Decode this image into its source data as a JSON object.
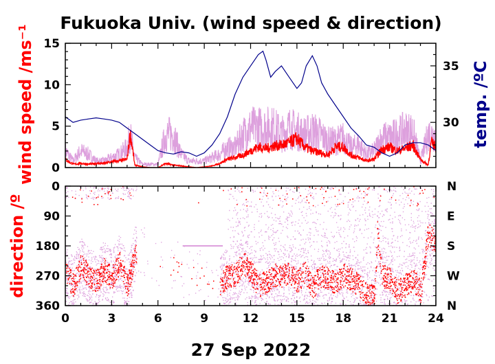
{
  "chart_data": [
    {
      "type": "line",
      "title": "Fukuoka Univ. (wind speed & direction)",
      "ylabel": "wind speed /ms⁻¹",
      "y2label": "temp. /ºC",
      "ylim": [
        0,
        15
      ],
      "y2lim": [
        26,
        37
      ],
      "xlim": [
        0,
        24
      ],
      "yticks": [
        "0",
        "5",
        "10",
        "15"
      ],
      "y2ticks": [
        "30",
        "35"
      ],
      "series": [
        {
          "name": "",
          "color": "#dda0dd",
          "kind": "max wind speed",
          "x": [
            0,
            0.5,
            1,
            1.5,
            2,
            2.5,
            3,
            3.5,
            4,
            4.2,
            4.5,
            5,
            6,
            6.5,
            7,
            7.5,
            8,
            9,
            10,
            10.5,
            11,
            11.5,
            12,
            12.5,
            13,
            13.5,
            14,
            14.5,
            15,
            15.5,
            16,
            16.5,
            17,
            17.5,
            18,
            18.5,
            19,
            19.5,
            20,
            20.5,
            21,
            21.5,
            22,
            22.5,
            23,
            23.5,
            24
          ],
          "y": [
            2.5,
            1,
            2.5,
            2,
            1,
            1,
            1.5,
            2,
            3,
            5,
            1.5,
            0.5,
            0.5,
            5,
            5,
            2,
            1,
            1,
            2,
            3,
            3,
            5,
            6,
            6,
            6,
            6,
            5,
            6,
            5.5,
            5,
            5.5,
            5,
            4,
            4,
            4.5,
            3,
            3.5,
            2,
            2.5,
            4.5,
            4.5,
            5,
            5.5,
            5.5,
            1,
            5,
            5
          ]
        },
        {
          "name": "",
          "color": "#ff0000",
          "kind": "mean wind speed",
          "x": [
            0,
            0.3,
            0.6,
            1,
            1.5,
            2,
            2.5,
            3,
            3.5,
            4,
            4.2,
            4.3,
            4.5,
            5,
            5.5,
            6,
            6.5,
            7,
            7.5,
            8,
            8.5,
            9,
            9.5,
            10,
            10.5,
            11,
            11.5,
            12,
            12.5,
            13,
            13.5,
            14,
            14.5,
            15,
            15.5,
            16,
            16.5,
            17,
            17.5,
            18,
            18.5,
            19,
            19.5,
            20,
            20.5,
            21,
            21.5,
            22,
            22.5,
            23,
            23.5,
            23.7,
            24
          ],
          "y": [
            1,
            0.6,
            0.4,
            0.5,
            0.4,
            0.5,
            0.5,
            0.7,
            0.8,
            1,
            4,
            3,
            0.3,
            0.1,
            0,
            0,
            0.5,
            0.3,
            0.2,
            0.1,
            0,
            0.1,
            0.2,
            0.5,
            1,
            1.2,
            1.5,
            2,
            2.5,
            2.3,
            2.6,
            2.7,
            3,
            3.5,
            2.5,
            2,
            1.8,
            1.5,
            2.5,
            2.5,
            1.5,
            1.2,
            0.8,
            1,
            2.2,
            2.5,
            2,
            2.3,
            2.7,
            1,
            0.3,
            3,
            2.5
          ]
        },
        {
          "name": "",
          "color": "#00008b",
          "kind": "temperature",
          "axis": "right",
          "x": [
            0,
            0.5,
            1,
            1.5,
            2,
            2.5,
            3,
            3.5,
            4,
            4.5,
            5,
            5.5,
            6,
            6.5,
            7,
            7.5,
            8,
            8.5,
            9,
            9.5,
            10,
            10.5,
            11,
            11.5,
            12,
            12.5,
            12.8,
            13,
            13.3,
            13.6,
            14,
            14.5,
            15,
            15.3,
            15.6,
            16,
            16.3,
            16.6,
            17,
            17.5,
            18,
            18.5,
            19,
            19.5,
            20,
            20.5,
            21,
            21.5,
            22,
            22.5,
            23,
            23.5,
            24
          ],
          "y": [
            30.5,
            30,
            30.2,
            30.3,
            30.4,
            30.3,
            30.2,
            30,
            29.5,
            29,
            28.5,
            28,
            27.5,
            27.3,
            27.2,
            27.4,
            27.3,
            27,
            27.3,
            28,
            29,
            30.5,
            32.5,
            34,
            35,
            36,
            36.3,
            35.5,
            34,
            34.5,
            35,
            34,
            33,
            33.5,
            35,
            35.9,
            35,
            33.5,
            32.5,
            31.5,
            30.5,
            29.5,
            28.8,
            28,
            27.8,
            27.3,
            27,
            27.3,
            28,
            28.2,
            28.2,
            28,
            27.5
          ]
        }
      ]
    },
    {
      "type": "scatter",
      "ylabel": "direction /º",
      "xlabel": "27 Sep 2022",
      "xlim": [
        0,
        24
      ],
      "ylim": [
        0,
        360
      ],
      "y_inverted": true,
      "xticks": [
        "0",
        "3",
        "6",
        "9",
        "12",
        "15",
        "18",
        "21",
        "24"
      ],
      "yticks": [
        "0",
        "90",
        "180",
        "270",
        "360"
      ],
      "y2ticks": [
        "N",
        "E",
        "S",
        "W",
        "N"
      ],
      "series": [
        {
          "name": "",
          "color": "#dda0dd",
          "kind": "direction spread"
        },
        {
          "name": "",
          "color": "#ff0000",
          "kind": "mean direction",
          "x": [
            0,
            0.5,
            1,
            1.5,
            2,
            2.5,
            3,
            3.5,
            4,
            4.3,
            4.5,
            10,
            10.5,
            11,
            11.5,
            12,
            12.5,
            13,
            13.5,
            14,
            14.5,
            15,
            15.5,
            16,
            16.5,
            17,
            17.5,
            18,
            18.5,
            19,
            19.5,
            20,
            20.2,
            20.5,
            21,
            21.5,
            22,
            22.5,
            23,
            23.5,
            24
          ],
          "y": [
            260,
            300,
            240,
            270,
            290,
            250,
            280,
            230,
            300,
            250,
            200,
            300,
            270,
            270,
            230,
            260,
            300,
            290,
            270,
            270,
            260,
            290,
            260,
            310,
            270,
            280,
            290,
            270,
            280,
            300,
            330,
            330,
            140,
            270,
            280,
            320,
            300,
            280,
            320,
            140,
            180
          ]
        }
      ]
    }
  ]
}
